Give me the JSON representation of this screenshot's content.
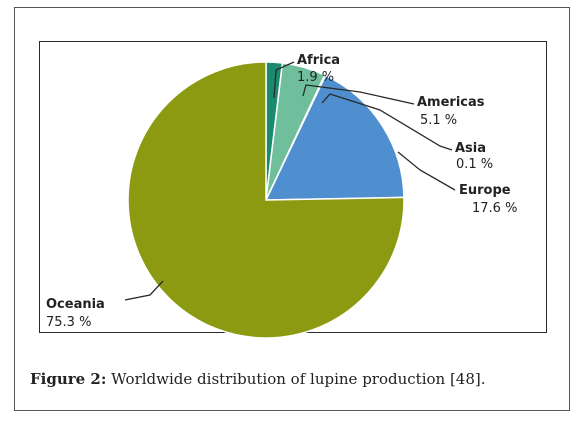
{
  "chart_data": {
    "type": "pie",
    "title": "",
    "slices": [
      {
        "label": "Africa",
        "value": 1.9,
        "value_text": "1.9 %",
        "color": "#1c8a6e"
      },
      {
        "label": "Americas",
        "value": 5.1,
        "value_text": "5.1 %",
        "color": "#6fbf9c"
      },
      {
        "label": "Asia",
        "value": 0.1,
        "value_text": "0.1 %",
        "color": "#5aa88a"
      },
      {
        "label": "Europe",
        "value": 17.6,
        "value_text": "17.6 %",
        "color": "#4f8fcf"
      },
      {
        "label": "Oceania",
        "value": 75.3,
        "value_text": "75.3 %",
        "color": "#8c9a12"
      }
    ],
    "start": "12 o'clock",
    "direction": "clockwise"
  },
  "caption": {
    "prefix": "Figure 2:",
    "text": " Worldwide distribution of lupine production [48]."
  }
}
